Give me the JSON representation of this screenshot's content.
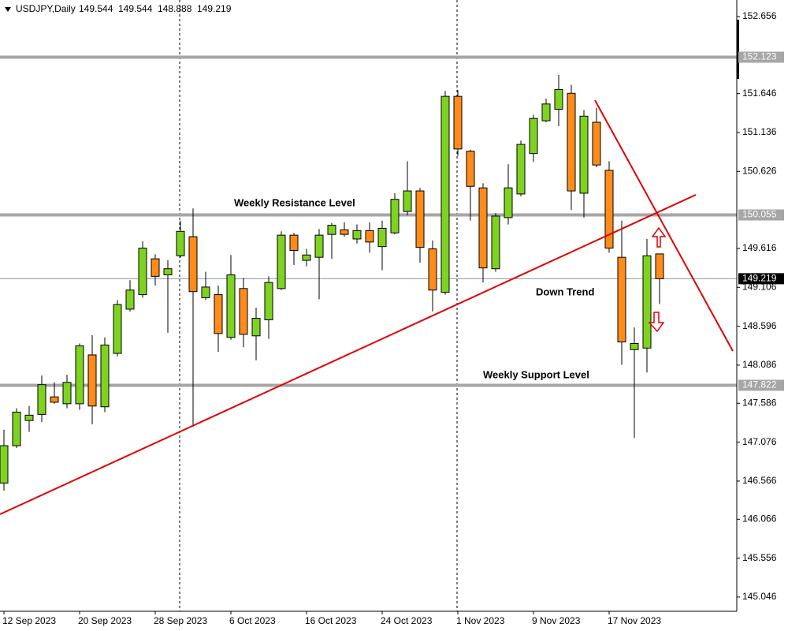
{
  "chart_data": {
    "type": "candlestick",
    "title": "USDJPY,Daily",
    "categories": [
      "12 Sep 2023",
      null,
      null,
      null,
      null,
      null,
      "20 Sep 2023",
      null,
      null,
      null,
      null,
      null,
      "28 Sep 2023",
      null,
      null,
      null,
      null,
      null,
      "6 Oct 2023",
      null,
      null,
      null,
      null,
      null,
      "16 Oct 2023",
      null,
      null,
      null,
      null,
      null,
      "24 Oct 2023",
      null,
      null,
      null,
      null,
      null,
      "1 Nov 2023",
      null,
      null,
      null,
      null,
      null,
      "9 Nov 2023",
      null,
      null,
      null,
      null,
      null,
      "17 Nov 2023",
      null,
      null,
      null,
      null
    ],
    "open": [
      146.54,
      147.03,
      147.36,
      147.44,
      147.67,
      147.58,
      147.58,
      148.22,
      147.54,
      148.24,
      148.82,
      149.01,
      149.48,
      149.27,
      149.52,
      149.77,
      148.97,
      149.01,
      148.45,
      149.09,
      148.47,
      148.68,
      149.09,
      149.79,
      149.46,
      149.5,
      149.8,
      149.86,
      149.74,
      149.85,
      149.64,
      149.82,
      150.1,
      150.37,
      149.61,
      149.04,
      151.61,
      150.89,
      150.41,
      149.35,
      150.02,
      150.33,
      150.86,
      151.29,
      151.44,
      151.65,
      150.34,
      151.27,
      150.64,
      149.5,
      148.29,
      148.31,
      149.544
    ],
    "high": [
      147.24,
      147.52,
      147.55,
      147.95,
      147.86,
      147.96,
      148.37,
      148.48,
      148.45,
      148.94,
      149.2,
      149.71,
      149.54,
      149.46,
      149.98,
      150.14,
      149.31,
      149.13,
      149.53,
      149.23,
      148.84,
      149.25,
      149.84,
      149.82,
      149.61,
      149.87,
      149.95,
      149.96,
      149.93,
      149.96,
      149.98,
      150.34,
      150.76,
      150.41,
      149.72,
      151.68,
      151.69,
      150.91,
      150.47,
      150.08,
      150.72,
      151.03,
      151.37,
      151.58,
      151.89,
      151.76,
      151.43,
      151.46,
      150.76,
      149.98,
      148.58,
      149.74,
      149.544
    ],
    "low": [
      146.44,
      147.0,
      147.21,
      147.34,
      147.58,
      147.52,
      147.5,
      147.31,
      147.47,
      148.2,
      148.79,
      148.97,
      149.13,
      148.51,
      149.5,
      147.28,
      148.94,
      148.26,
      148.42,
      148.32,
      148.15,
      148.43,
      149.07,
      149.4,
      149.38,
      148.95,
      149.48,
      149.77,
      149.68,
      149.56,
      149.33,
      149.8,
      150.05,
      149.43,
      148.79,
      149.01,
      150.83,
      149.98,
      149.17,
      149.31,
      149.93,
      150.3,
      150.75,
      151.27,
      151.22,
      150.12,
      150.02,
      150.68,
      149.56,
      148.09,
      147.13,
      147.99,
      148.888
    ],
    "close": [
      147.03,
      147.47,
      147.43,
      147.83,
      147.6,
      147.86,
      148.34,
      147.55,
      148.35,
      148.88,
      149.07,
      149.62,
      149.25,
      149.35,
      149.84,
      149.05,
      149.11,
      148.5,
      149.27,
      148.49,
      148.7,
      149.17,
      149.79,
      149.59,
      149.53,
      149.79,
      149.92,
      149.8,
      149.85,
      149.7,
      149.88,
      150.26,
      150.37,
      149.63,
      149.07,
      151.61,
      150.92,
      150.43,
      149.36,
      150.04,
      150.41,
      150.98,
      151.32,
      151.51,
      151.7,
      150.37,
      151.35,
      150.71,
      149.62,
      148.39,
      148.37,
      149.52,
      149.219
    ],
    "up_color": "#7ed321",
    "down_color": "#ff8c1a",
    "ylim": [
      144.859,
      152.873
    ],
    "yticks": [
      152.656,
      151.646,
      151.136,
      150.626,
      149.616,
      149.106,
      148.596,
      148.086,
      147.586,
      147.076,
      146.566,
      146.066,
      145.556,
      145.046
    ],
    "levels": [
      152.123,
      150.055,
      147.822
    ],
    "level_color": "#a6a6a6",
    "annotations": [
      "Weekly Resistance Level",
      "Down Trend",
      "Weekly Support Level"
    ],
    "grid": false
  }
}
